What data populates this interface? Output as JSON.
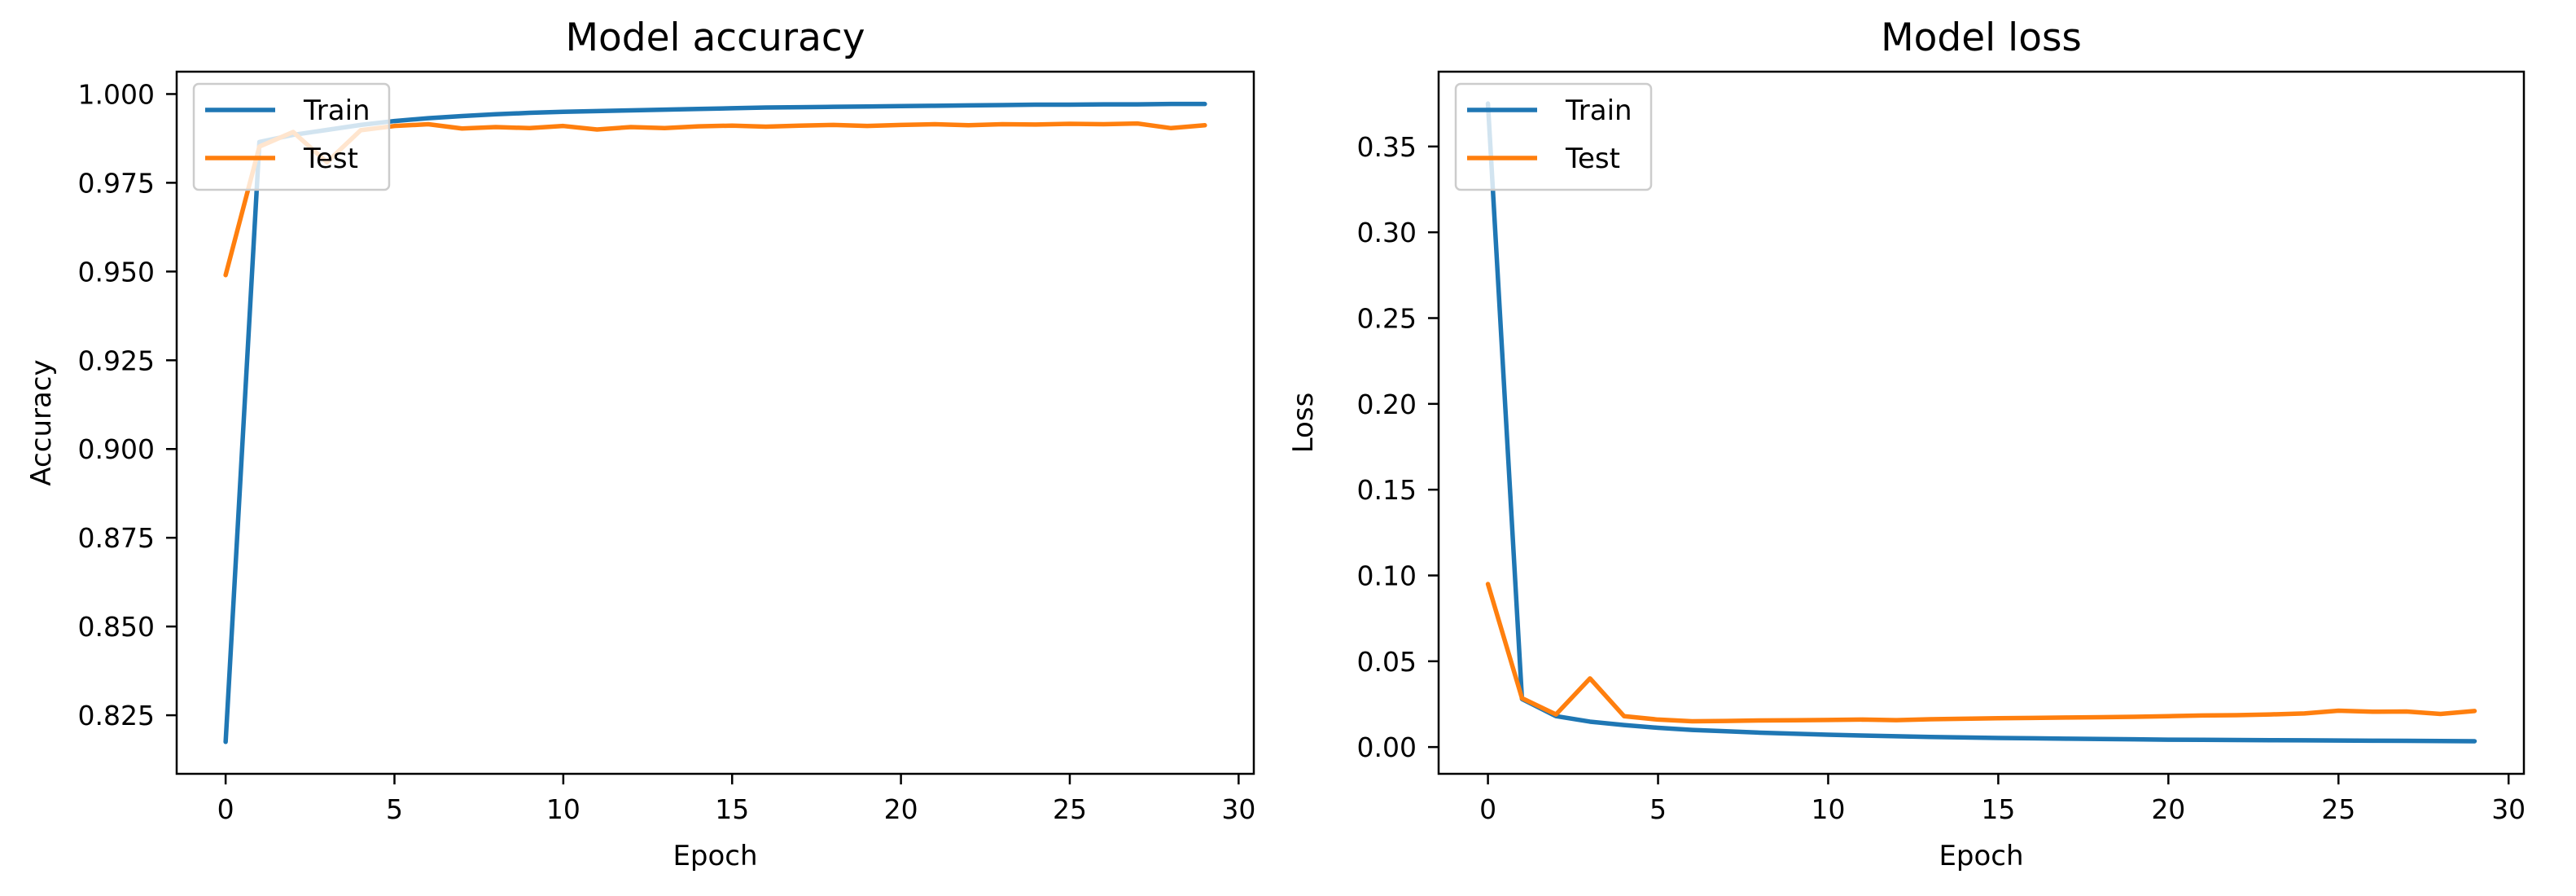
{
  "figure": {
    "background": "#ffffff"
  },
  "colors": {
    "train": "#1f77b4",
    "test": "#ff7f0e",
    "axis": "#000000",
    "tick_label": "#000000",
    "legend_border": "#cccccc",
    "legend_fill": "#ffffff",
    "legend_fill_alpha": 0.8
  },
  "chart_data": [
    {
      "type": "line",
      "title": "Model accuracy",
      "xlabel": "Epoch",
      "ylabel": "Accuracy",
      "grid": false,
      "legend_position": "upper left",
      "xlim": [
        -1.45,
        30.45
      ],
      "ylim": [
        0.8085,
        1.0063
      ],
      "xticks": {
        "values": [
          0,
          5,
          10,
          15,
          20,
          25,
          30
        ],
        "labels": [
          "0",
          "5",
          "10",
          "15",
          "20",
          "25",
          "30"
        ]
      },
      "yticks": {
        "values": [
          0.825,
          0.85,
          0.875,
          0.9,
          0.925,
          0.95,
          0.975,
          1.0
        ],
        "labels": [
          "0.825",
          "0.850",
          "0.875",
          "0.900",
          "0.925",
          "0.950",
          "0.975",
          "1.000"
        ]
      },
      "x": [
        0,
        1,
        2,
        3,
        4,
        5,
        6,
        7,
        8,
        9,
        10,
        11,
        12,
        13,
        14,
        15,
        16,
        17,
        18,
        19,
        20,
        21,
        22,
        23,
        24,
        25,
        26,
        27,
        28,
        29
      ],
      "series": [
        {
          "name": "Train",
          "color_key": "train",
          "values": [
            0.8175,
            0.9865,
            0.9885,
            0.9899,
            0.9913,
            0.9924,
            0.9932,
            0.9938,
            0.9943,
            0.9947,
            0.995,
            0.9952,
            0.9954,
            0.9956,
            0.9958,
            0.996,
            0.9962,
            0.9963,
            0.9964,
            0.9965,
            0.9966,
            0.9967,
            0.9968,
            0.9969,
            0.997,
            0.997,
            0.9971,
            0.9971,
            0.9972,
            0.9972
          ]
        },
        {
          "name": "Test",
          "color_key": "test",
          "values": [
            0.949,
            0.9852,
            0.9893,
            0.9808,
            0.9898,
            0.991,
            0.9915,
            0.9903,
            0.9907,
            0.9904,
            0.991,
            0.99,
            0.9907,
            0.9904,
            0.9909,
            0.9911,
            0.9908,
            0.9911,
            0.9913,
            0.991,
            0.9913,
            0.9915,
            0.9912,
            0.9915,
            0.9914,
            0.9916,
            0.9915,
            0.9917,
            0.9904,
            0.9912
          ]
        }
      ]
    },
    {
      "type": "line",
      "title": "Model loss",
      "xlabel": "Epoch",
      "ylabel": "Loss",
      "grid": false,
      "legend_position": "upper left",
      "xlim": [
        -1.45,
        30.45
      ],
      "ylim": [
        -0.0156,
        0.3936
      ],
      "xticks": {
        "values": [
          0,
          5,
          10,
          15,
          20,
          25,
          30
        ],
        "labels": [
          "0",
          "5",
          "10",
          "15",
          "20",
          "25",
          "30"
        ]
      },
      "yticks": {
        "values": [
          0.0,
          0.05,
          0.1,
          0.15,
          0.2,
          0.25,
          0.3,
          0.35
        ],
        "labels": [
          "0.00",
          "0.05",
          "0.10",
          "0.15",
          "0.20",
          "0.25",
          "0.30",
          "0.35"
        ]
      },
      "x": [
        0,
        1,
        2,
        3,
        4,
        5,
        6,
        7,
        8,
        9,
        10,
        11,
        12,
        13,
        14,
        15,
        16,
        17,
        18,
        19,
        20,
        21,
        22,
        23,
        24,
        25,
        26,
        27,
        28,
        29
      ],
      "series": [
        {
          "name": "Train",
          "color_key": "train",
          "values": [
            0.375,
            0.028,
            0.018,
            0.0148,
            0.0128,
            0.0112,
            0.01,
            0.0092,
            0.0084,
            0.0078,
            0.0072,
            0.0067,
            0.0063,
            0.0059,
            0.0056,
            0.0053,
            0.0051,
            0.0049,
            0.0047,
            0.0045,
            0.0043,
            0.0042,
            0.0041,
            0.004,
            0.0039,
            0.0038,
            0.0037,
            0.0036,
            0.0035,
            0.0034
          ]
        },
        {
          "name": "Test",
          "color_key": "test",
          "values": [
            0.095,
            0.0285,
            0.019,
            0.04,
            0.018,
            0.016,
            0.015,
            0.0152,
            0.0155,
            0.0156,
            0.0158,
            0.016,
            0.0157,
            0.0162,
            0.0165,
            0.0168,
            0.017,
            0.0172,
            0.0174,
            0.0176,
            0.018,
            0.0184,
            0.0186,
            0.019,
            0.0196,
            0.0212,
            0.0206,
            0.0207,
            0.0193,
            0.021
          ]
        }
      ]
    }
  ]
}
